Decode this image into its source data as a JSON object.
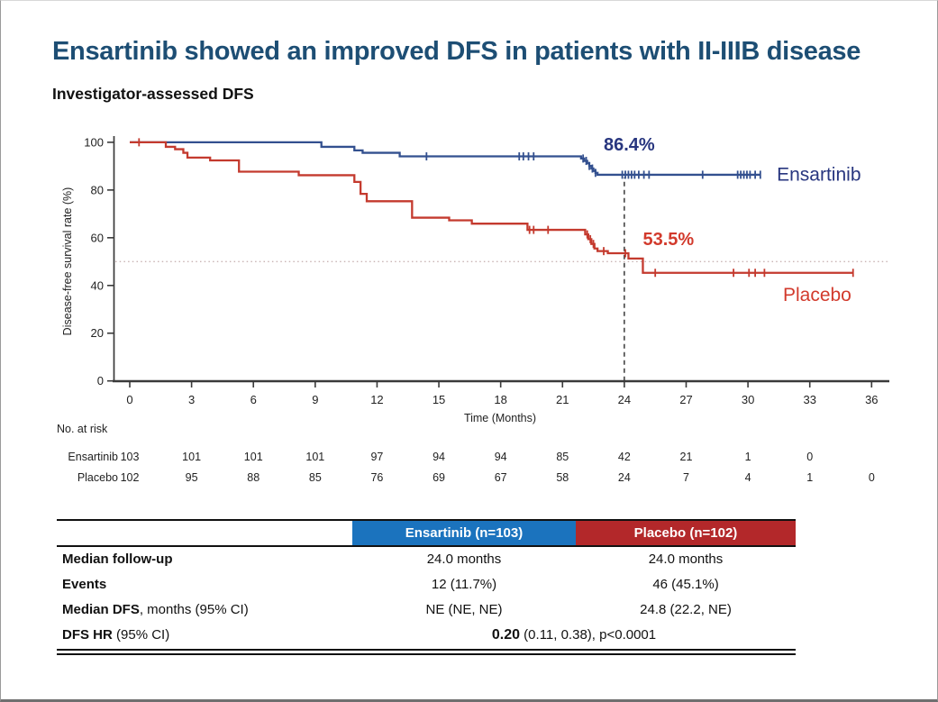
{
  "slide": {
    "title": "Ensartinib showed an improved DFS in patients with II-IIIB disease",
    "subtitle": "Investigator-assessed DFS"
  },
  "colors": {
    "title": "#1d4e74",
    "ensartinib_curve": "#33508f",
    "ensartinib_text": "#28367f",
    "placebo_curve": "#c43a2e",
    "placebo_text": "#d23a2c",
    "header_blue": "#1b73be",
    "header_red": "#b3282a",
    "axis": "#3a3a3a",
    "dashed_reference": "#1a1a1a",
    "dotted_reference": "#c9b4b4"
  },
  "chart_data": {
    "type": "line",
    "subtype": "kaplan-meier-step",
    "title": "Investigator-assessed DFS",
    "xlabel": "Time (Months)",
    "ylabel": "Disease-free survival rate (%)",
    "xlim": [
      0,
      36.8
    ],
    "ylim": [
      0,
      100
    ],
    "xticks": [
      0,
      3,
      6,
      9,
      12,
      15,
      18,
      21,
      24,
      27,
      30,
      33,
      36
    ],
    "yticks": [
      0,
      20,
      40,
      60,
      80,
      100
    ],
    "grid": false,
    "reference_lines": {
      "vertical_dashed_at_month": 24,
      "horizontal_dotted_at_pct": 50
    },
    "series": [
      {
        "name": "Ensartinib",
        "color": "#33508f",
        "landmark": {
          "text": "86.4%",
          "x_month": 23.0,
          "y_pct": 96.5
        },
        "name_label": {
          "x_month": 31.4,
          "y_pct": 84.0
        },
        "steps": [
          [
            0,
            100
          ],
          [
            9.3,
            98.1
          ],
          [
            10.9,
            96.6
          ],
          [
            11.3,
            95.6
          ],
          [
            13.1,
            94.1
          ],
          [
            21.9,
            93.2
          ],
          [
            22.05,
            92.2
          ],
          [
            22.2,
            91.2
          ],
          [
            22.3,
            90.1
          ],
          [
            22.4,
            89.0
          ],
          [
            22.5,
            88.0
          ],
          [
            22.6,
            87.2
          ],
          [
            22.7,
            86.4
          ],
          [
            30.6,
            86.4
          ]
        ],
        "censor_months": [
          14.4,
          18.9,
          19.1,
          19.35,
          19.6,
          22.0,
          22.15,
          22.3,
          22.45,
          22.6,
          23.9,
          24.05,
          24.2,
          24.35,
          24.5,
          24.7,
          24.95,
          25.2,
          27.8,
          29.5,
          29.65,
          29.8,
          29.95,
          30.1,
          30.35,
          30.6
        ]
      },
      {
        "name": "Placebo",
        "color": "#c43a2e",
        "landmark": {
          "text": "53.5%",
          "x_month": 24.9,
          "y_pct": 57.0
        },
        "name_label": {
          "x_month": 31.7,
          "y_pct": 33.5
        },
        "steps": [
          [
            0,
            100
          ],
          [
            1.75,
            98.1
          ],
          [
            2.2,
            97.1
          ],
          [
            2.6,
            95.6
          ],
          [
            2.8,
            93.6
          ],
          [
            3.9,
            92.4
          ],
          [
            5.3,
            87.7
          ],
          [
            8.2,
            86.2
          ],
          [
            10.9,
            83.4
          ],
          [
            11.2,
            78.4
          ],
          [
            11.5,
            75.3
          ],
          [
            13.7,
            68.4
          ],
          [
            15.5,
            67.3
          ],
          [
            16.6,
            65.9
          ],
          [
            19.3,
            63.3
          ],
          [
            22.1,
            61.4
          ],
          [
            22.25,
            59.4
          ],
          [
            22.4,
            57.4
          ],
          [
            22.55,
            55.5
          ],
          [
            22.7,
            54.4
          ],
          [
            23.2,
            53.5
          ],
          [
            24.2,
            51.3
          ],
          [
            24.9,
            45.3
          ],
          [
            35.1,
            45.3
          ]
        ],
        "censor_months": [
          0.45,
          19.4,
          19.6,
          20.3,
          22.2,
          22.35,
          22.5,
          23.0,
          24.05,
          25.5,
          29.3,
          30.05,
          30.35,
          30.8,
          35.1
        ]
      }
    ]
  },
  "risk_table": {
    "heading": "No. at risk",
    "time_points": [
      0,
      3,
      6,
      9,
      12,
      15,
      18,
      21,
      24,
      27,
      30,
      33,
      36
    ],
    "rows": [
      {
        "label": "Ensartinib",
        "counts": [
          103,
          101,
          101,
          101,
          97,
          94,
          94,
          85,
          42,
          21,
          1,
          0
        ]
      },
      {
        "label": "Placebo",
        "counts": [
          102,
          95,
          88,
          85,
          76,
          69,
          67,
          58,
          24,
          7,
          4,
          1,
          0
        ]
      }
    ]
  },
  "summary_table": {
    "headers": [
      {
        "label": "Ensartinib (n=103)",
        "color": "#1b73be"
      },
      {
        "label": "Placebo (n=102)",
        "color": "#b3282a"
      }
    ],
    "rows": [
      {
        "label_bold": "Median follow-up",
        "label_rest": "",
        "ensartinib": "24.0 months",
        "placebo": "24.0 months"
      },
      {
        "label_bold": "Events",
        "label_rest": "",
        "ensartinib": "12 (11.7%)",
        "placebo": "46 (45.1%)"
      },
      {
        "label_bold": "Median DFS",
        "label_rest": ", months (95% CI)",
        "ensartinib": "NE (NE, NE)",
        "placebo": "24.8 (22.2, NE)"
      },
      {
        "label_bold": "DFS HR",
        "label_rest": " (95% CI)",
        "combined_bold": "0.20",
        "combined_rest": " (0.11, 0.38), p<0.0001"
      }
    ]
  }
}
